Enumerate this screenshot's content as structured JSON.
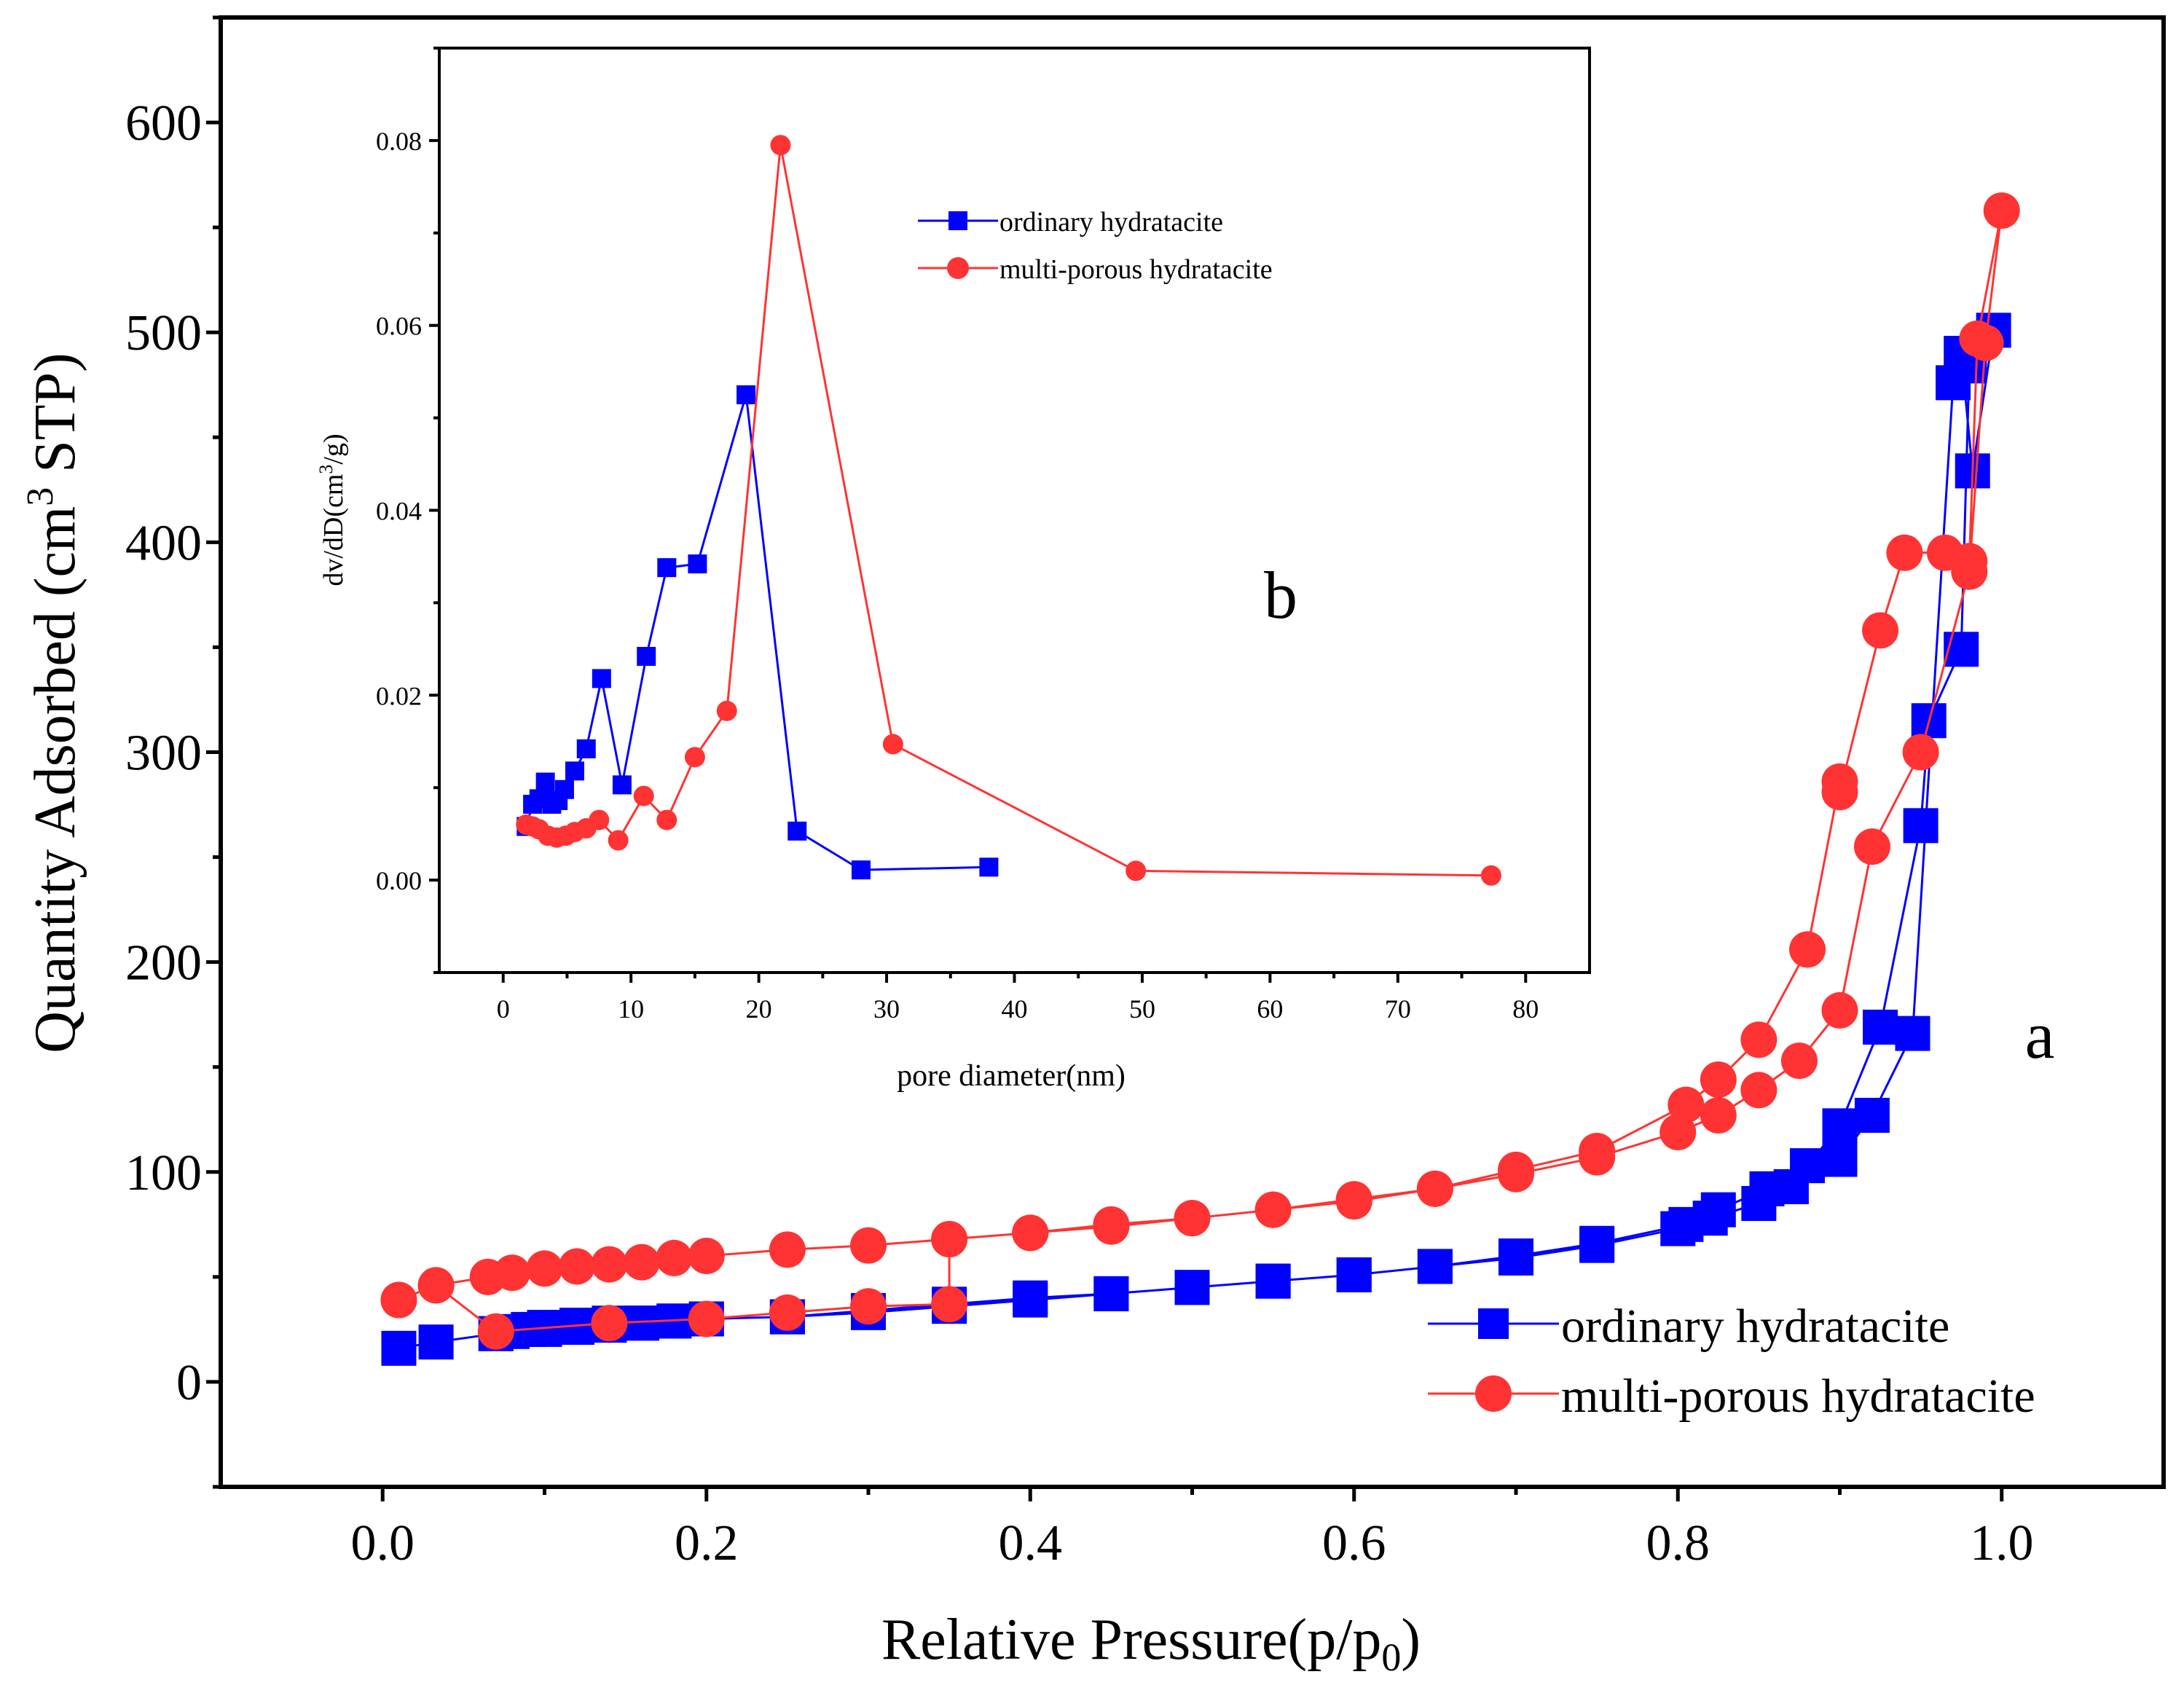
{
  "chart_data": [
    {
      "id": "a",
      "type": "line",
      "title": "",
      "panel_label": "a",
      "xlabel": "Relative Pressure(p/p",
      "xlabel_sub": "0",
      "xlabel_end": ")",
      "ylabel": "Quantity Adsorbed (cm",
      "ylabel_sup": "3",
      "ylabel_end": " STP)",
      "xlim": [
        -0.1,
        1.1
      ],
      "ylim": [
        -50,
        650
      ],
      "xticks": [
        0.0,
        0.2,
        0.4,
        0.6,
        0.8,
        1.0
      ],
      "xtick_labels": [
        "0.0",
        "0.2",
        "0.4",
        "0.6",
        "0.8",
        "1.0"
      ],
      "yticks": [
        0,
        100,
        200,
        300,
        400,
        500,
        600
      ],
      "ytick_labels": [
        "0",
        "100",
        "200",
        "300",
        "400",
        "500",
        "600"
      ],
      "legend_position": "bottom-right",
      "series": [
        {
          "name": "ordinary hydratacite",
          "color": "#0000ff",
          "marker": "square",
          "x": [
            0.01,
            0.033,
            0.07,
            0.09,
            0.1,
            0.11,
            0.12,
            0.14,
            0.16,
            0.18,
            0.2,
            0.25,
            0.3,
            0.35,
            0.4,
            0.45,
            0.5,
            0.55,
            0.6,
            0.65,
            0.7,
            0.75,
            0.8,
            0.82,
            0.85,
            0.87,
            0.9,
            0.92,
            0.945,
            0.97,
            0.975,
            0.982,
            0.995,
            0.98,
            0.975,
            0.955,
            0.95,
            0.925,
            0.9,
            0.88,
            0.87,
            0.855,
            0.825,
            0.805,
            0.75,
            0.7,
            0.65,
            0.6,
            0.55,
            0.5,
            0.45,
            0.4,
            0.35,
            0.3,
            0.25,
            0.2,
            0.18,
            0.16,
            0.14,
            0.12,
            0.1,
            0.08,
            0.07
          ],
          "y": [
            16,
            19,
            23,
            25,
            26,
            26,
            27,
            28,
            28,
            29,
            30,
            31,
            34,
            37,
            40,
            42,
            45,
            48,
            51,
            55,
            59,
            65,
            73,
            78,
            85,
            93,
            106,
            127,
            166,
            476,
            490,
            434,
            501,
            484,
            349,
            315,
            265,
            169,
            122,
            103,
            93,
            92,
            82,
            75,
            66,
            60,
            55,
            51,
            48,
            45,
            42,
            39,
            36,
            33,
            31,
            30,
            29,
            28,
            27,
            26,
            25,
            24,
            23
          ]
        },
        {
          "name": "multi-porous hydratacite",
          "color": "#ff3333",
          "marker": "circle",
          "x": [
            0.01,
            0.033,
            0.07,
            0.14,
            0.2,
            0.25,
            0.3,
            0.35,
            0.35,
            0.4,
            0.45,
            0.5,
            0.55,
            0.6,
            0.65,
            0.7,
            0.75,
            0.8,
            0.825,
            0.85,
            0.875,
            0.9,
            0.92,
            0.95,
            0.98,
            0.99,
            1.0,
            0.985,
            0.98,
            0.965,
            0.94,
            0.925,
            0.9,
            0.9,
            0.88,
            0.85,
            0.825,
            0.805,
            0.75,
            0.7,
            0.65,
            0.6,
            0.55,
            0.5,
            0.45,
            0.4,
            0.35,
            0.3,
            0.25,
            0.2,
            0.18,
            0.16,
            0.14,
            0.12,
            0.1,
            0.08,
            0.065,
            0.033,
            0.01
          ],
          "y": [
            39,
            46,
            24,
            28,
            30,
            33,
            36,
            37,
            68,
            71,
            75,
            78,
            82,
            87,
            92,
            99,
            107,
            119,
            127,
            139,
            153,
            177,
            255,
            300,
            386,
            495,
            558,
            497,
            391,
            395,
            395,
            358,
            281,
            286,
            206,
            163,
            144,
            132,
            110,
            101,
            92,
            86,
            82,
            78,
            74,
            71,
            68,
            65,
            63,
            60,
            59,
            57,
            56,
            55,
            54,
            52,
            50,
            46,
            39
          ]
        }
      ]
    },
    {
      "id": "b",
      "type": "line",
      "title": "",
      "panel_label": "b",
      "xlabel": "pore diameter(nm)",
      "ylabel": "dv/dD(cm",
      "ylabel_sup": "3",
      "ylabel_end": "/g)",
      "xlim": [
        -5,
        85
      ],
      "ylim": [
        -0.01,
        0.09
      ],
      "xticks": [
        0,
        10,
        20,
        30,
        40,
        50,
        60,
        70,
        80
      ],
      "xtick_labels": [
        "0",
        "10",
        "20",
        "30",
        "40",
        "50",
        "60",
        "70",
        "80"
      ],
      "yticks": [
        0.0,
        0.02,
        0.04,
        0.06,
        0.08
      ],
      "ytick_labels": [
        "0.00",
        "0.02",
        "0.04",
        "0.06",
        "0.08"
      ],
      "legend_position": "upper-middle",
      "series": [
        {
          "name": "ordinary hydratacite",
          "color": "#0000ff",
          "marker": "square",
          "x": [
            1.8,
            2.3,
            2.8,
            3.3,
            3.8,
            4.3,
            4.8,
            5.6,
            6.5,
            7.7,
            9.3,
            11.2,
            12.8,
            15.2,
            19,
            23,
            28,
            38
          ],
          "y": [
            0.0058,
            0.0082,
            0.0088,
            0.0106,
            0.0082,
            0.0086,
            0.0098,
            0.0118,
            0.0142,
            0.0218,
            0.0103,
            0.0242,
            0.0338,
            0.0342,
            0.0525,
            0.0053,
            0.0011,
            0.0014
          ]
        },
        {
          "name": "multi-porous hydratacite",
          "color": "#ff3333",
          "marker": "circle",
          "x": [
            1.8,
            2.3,
            2.8,
            3.5,
            4.2,
            4.9,
            5.6,
            6.5,
            7.5,
            9,
            11,
            12.8,
            15,
            17.5,
            21.7,
            30.5,
            49.5,
            77.3
          ],
          "y": [
            0.006,
            0.0058,
            0.0055,
            0.0048,
            0.0046,
            0.0048,
            0.0052,
            0.0056,
            0.0065,
            0.0043,
            0.0091,
            0.0065,
            0.0133,
            0.0183,
            0.0795,
            0.0147,
            0.001,
            0.0005
          ]
        }
      ]
    }
  ]
}
